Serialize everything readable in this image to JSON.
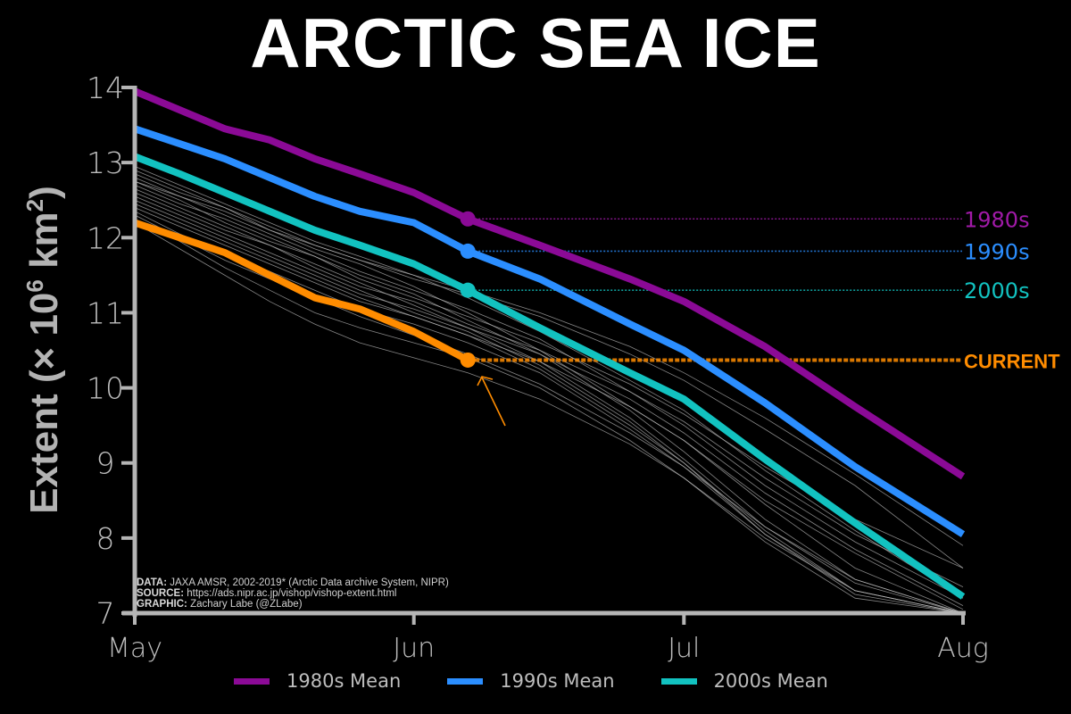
{
  "title": "ARCTIC SEA ICE",
  "credits": {
    "data_label": "DATA:",
    "data_text": "JAXA AMSR, 2002-2019* (Arctic Data archive System, NIPR)",
    "source_label": "SOURCE:",
    "source_text": "https://ads.nipr.ac.jp/vishop/vishop-extent.html",
    "graphic_label": "GRAPHIC:",
    "graphic_text": "Zachary Labe (@ZLabe)"
  },
  "legend": [
    {
      "label": "1980s Mean",
      "color": "#8b0a96"
    },
    {
      "label": "1990s Mean",
      "color": "#2b8eff"
    },
    {
      "label": "2000s Mean",
      "color": "#12c2c0"
    }
  ],
  "end_labels": [
    {
      "label": "1980s",
      "color": "#a11aa8",
      "value": 12.25
    },
    {
      "label": "1990s",
      "color": "#2b8eff",
      "value": 11.82
    },
    {
      "label": "2000s",
      "color": "#12c2c0",
      "value": 11.3
    },
    {
      "label": "CURRENT",
      "color": "#ff8c00",
      "value": 10.37
    }
  ],
  "chart_data": {
    "type": "line",
    "title": "ARCTIC SEA ICE",
    "xlabel": "",
    "ylabel": "Extent (× 10^6 km^2)",
    "ylim": [
      7,
      14
    ],
    "xlim_days": [
      0,
      92
    ],
    "x_ticks": [
      {
        "label": "May",
        "day": 0
      },
      {
        "label": "Jun",
        "day": 31
      },
      {
        "label": "Jul",
        "day": 61
      },
      {
        "label": "Aug",
        "day": 92
      }
    ],
    "y_ticks": [
      7,
      8,
      9,
      10,
      11,
      12,
      13,
      14
    ],
    "grid": false,
    "legend_position": "bottom",
    "x_days": [
      0,
      5,
      10,
      15,
      20,
      25,
      31,
      37,
      45,
      55,
      61,
      70,
      80,
      92
    ],
    "series": [
      {
        "name": "1980s Mean",
        "color": "#8b0a96",
        "values": [
          13.95,
          13.7,
          13.45,
          13.3,
          13.05,
          12.85,
          12.6,
          12.25,
          11.9,
          11.45,
          11.15,
          10.55,
          9.75,
          8.82
        ]
      },
      {
        "name": "1990s Mean",
        "color": "#2b8eff",
        "values": [
          13.45,
          13.25,
          13.05,
          12.8,
          12.55,
          12.35,
          12.2,
          11.82,
          11.45,
          10.85,
          10.5,
          9.8,
          8.95,
          8.05
        ]
      },
      {
        "name": "2000s Mean",
        "color": "#12c2c0",
        "values": [
          13.08,
          12.85,
          12.6,
          12.35,
          12.1,
          11.9,
          11.65,
          11.3,
          10.8,
          10.2,
          9.85,
          9.05,
          8.2,
          7.22
        ]
      },
      {
        "name": "Current",
        "color": "#ff8c00",
        "values": [
          12.2,
          12.0,
          11.8,
          11.5,
          11.2,
          11.05,
          10.75,
          10.37,
          null,
          null,
          null,
          null,
          null,
          null
        ]
      }
    ],
    "current_marker": {
      "day": 37,
      "value": 10.37,
      "label": "CURRENT"
    },
    "markers": [
      {
        "series": "1980s Mean",
        "day": 37,
        "value": 12.25
      },
      {
        "series": "1990s Mean",
        "day": 37,
        "value": 11.82
      },
      {
        "series": "2000s Mean",
        "day": 37,
        "value": 11.3
      },
      {
        "series": "Current",
        "day": 37,
        "value": 10.37
      }
    ],
    "individual_years_note": "Thin gray lines: individual years 2002-2019",
    "gray_years": [
      [
        12.95,
        12.7,
        12.45,
        12.2,
        11.95,
        11.75,
        11.5,
        11.2,
        10.75,
        10.1,
        9.7,
        8.9,
        8.1,
        7.2
      ],
      [
        12.85,
        12.6,
        12.4,
        12.1,
        11.85,
        11.65,
        11.35,
        11.0,
        10.5,
        9.75,
        9.3,
        8.45,
        7.6,
        6.9
      ],
      [
        12.8,
        12.55,
        12.3,
        12.05,
        11.8,
        11.55,
        11.3,
        11.05,
        10.65,
        9.95,
        9.5,
        8.7,
        7.95,
        7.2
      ],
      [
        12.75,
        12.5,
        12.2,
        11.95,
        11.75,
        11.5,
        11.25,
        10.9,
        10.45,
        9.7,
        9.15,
        8.25,
        7.45,
        6.95
      ],
      [
        12.7,
        12.45,
        12.25,
        12.0,
        11.75,
        11.45,
        11.2,
        10.95,
        10.6,
        10.05,
        9.65,
        8.95,
        8.25,
        7.6
      ],
      [
        12.65,
        12.4,
        12.15,
        11.9,
        11.65,
        11.4,
        11.1,
        10.8,
        10.35,
        9.6,
        9.05,
        8.15,
        7.4,
        6.9
      ],
      [
        12.6,
        12.35,
        12.1,
        11.9,
        11.6,
        11.35,
        11.15,
        10.85,
        10.5,
        9.95,
        9.55,
        8.8,
        8.05,
        7.35
      ],
      [
        12.55,
        12.3,
        12.05,
        11.8,
        11.55,
        11.3,
        11.0,
        10.75,
        10.3,
        9.55,
        9.0,
        8.1,
        7.3,
        6.85
      ],
      [
        12.5,
        12.25,
        12.0,
        11.75,
        11.5,
        11.25,
        11.05,
        10.8,
        10.45,
        9.85,
        9.4,
        8.6,
        7.85,
        7.1
      ],
      [
        12.45,
        12.2,
        11.95,
        11.7,
        11.45,
        11.2,
        10.95,
        10.7,
        10.25,
        9.5,
        9.0,
        8.05,
        7.25,
        6.85
      ],
      [
        12.4,
        12.15,
        11.9,
        11.65,
        11.4,
        11.15,
        10.95,
        10.7,
        10.35,
        9.75,
        9.3,
        8.5,
        7.8,
        7.05
      ],
      [
        12.35,
        12.05,
        11.8,
        11.55,
        11.3,
        11.05,
        10.85,
        10.6,
        10.2,
        9.45,
        8.95,
        8.05,
        7.3,
        6.9
      ],
      [
        12.3,
        12.0,
        11.7,
        11.45,
        11.2,
        10.95,
        10.7,
        10.45,
        10.05,
        9.4,
        8.95,
        8.15,
        7.45,
        7.0
      ],
      [
        12.25,
        11.95,
        11.6,
        11.3,
        11.0,
        10.8,
        10.6,
        10.4,
        10.0,
        9.3,
        8.8,
        7.95,
        7.2,
        6.9
      ],
      [
        12.2,
        11.85,
        11.5,
        11.15,
        10.85,
        10.6,
        10.4,
        10.2,
        9.85,
        9.25,
        8.8,
        8.0,
        7.3,
        6.95
      ],
      [
        12.75,
        12.55,
        12.35,
        12.1,
        11.9,
        11.7,
        11.5,
        11.3,
        11.0,
        10.55,
        10.2,
        9.6,
        8.85,
        7.9
      ],
      [
        12.9,
        12.65,
        12.4,
        12.15,
        11.9,
        11.7,
        11.45,
        11.25,
        10.95,
        10.45,
        10.1,
        9.45,
        8.7,
        7.6
      ]
    ]
  }
}
